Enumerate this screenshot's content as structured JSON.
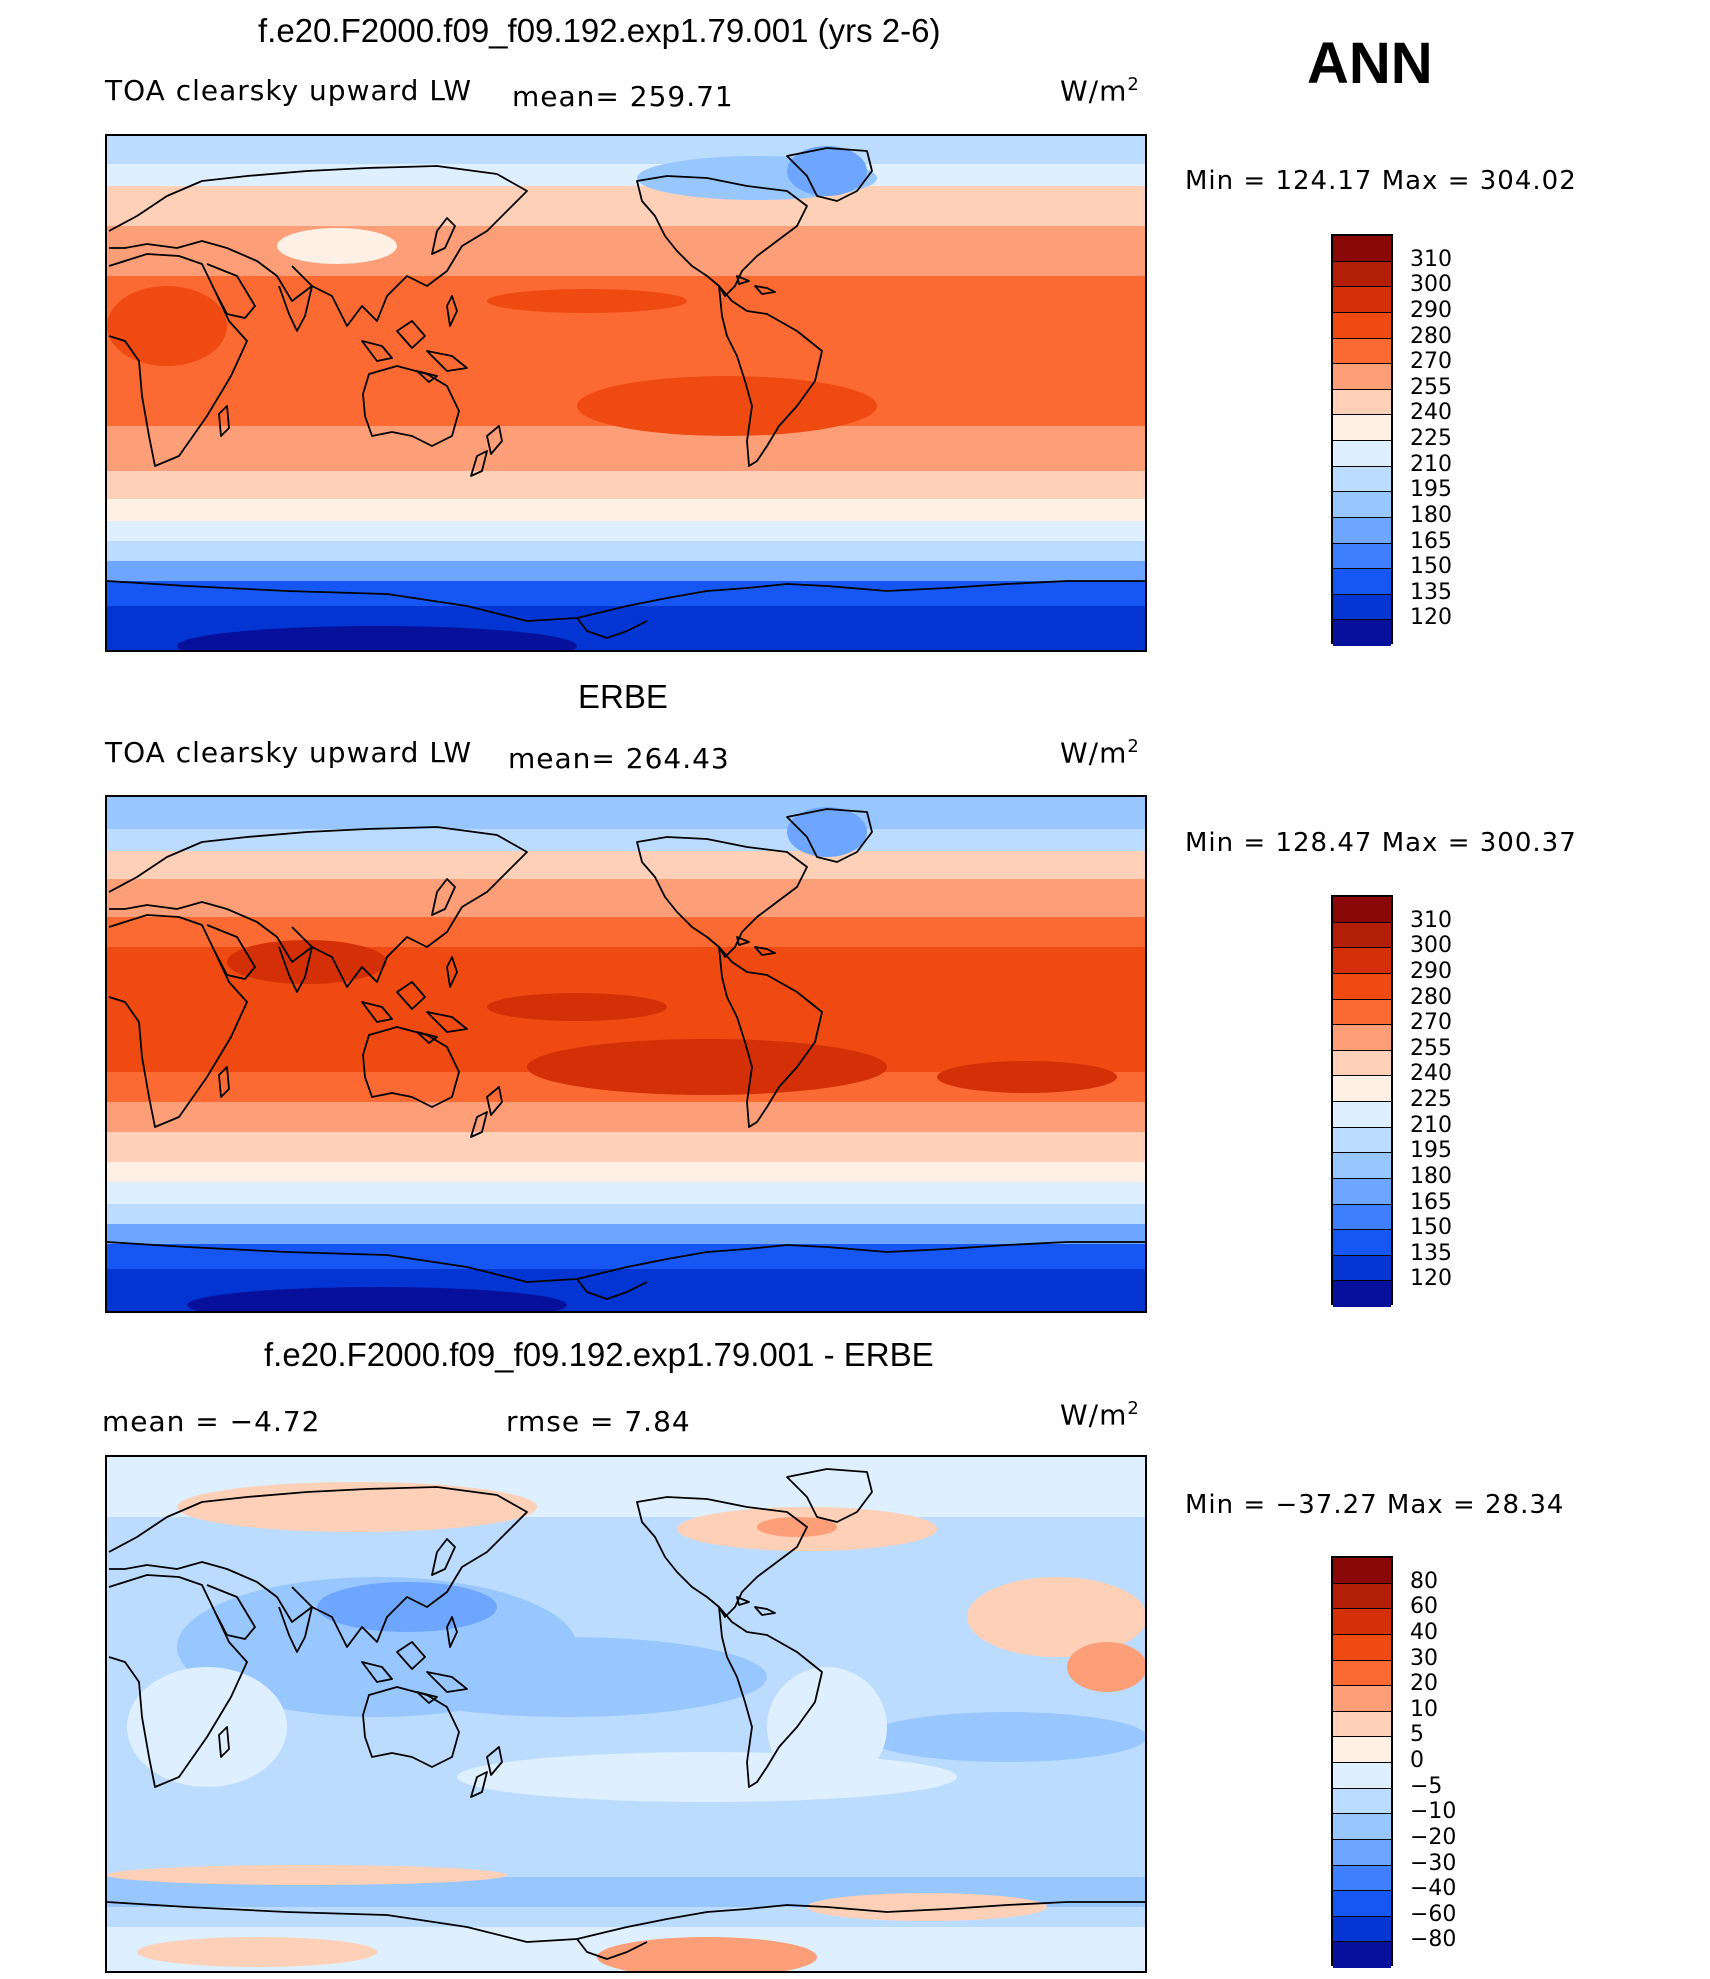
{
  "season": "ANN",
  "panels": [
    {
      "title": "f.e20.F2000.f09_f09.192.exp1.79.001 (yrs 2-6)",
      "left_label": "TOA clearsky upward LW",
      "center_label": "mean= 259.71",
      "units": "W/m",
      "units_sup": "2",
      "min_max": "Min  =  124.17  Max  =  304.02",
      "colorbar_labels": [
        "310",
        "300",
        "290",
        "280",
        "270",
        "255",
        "240",
        "225",
        "210",
        "195",
        "180",
        "165",
        "150",
        "135",
        "120"
      ],
      "colorbar_colors": [
        "#8a0808",
        "#b31e08",
        "#d33008",
        "#ee4a12",
        "#fb6a32",
        "#fc9e78",
        "#fdd0b7",
        "#fef0e4",
        "#deefff",
        "#bcdcff",
        "#98c6ff",
        "#6ea6ff",
        "#3f7ffd",
        "#1657f4",
        "#0335d2",
        "#06109b"
      ]
    },
    {
      "title": "ERBE",
      "left_label": "TOA clearsky upward LW",
      "center_label": "mean= 264.43",
      "units": "W/m",
      "units_sup": "2",
      "min_max": "Min  =  128.47  Max  =  300.37",
      "colorbar_labels": [
        "310",
        "300",
        "290",
        "280",
        "270",
        "255",
        "240",
        "225",
        "210",
        "195",
        "180",
        "165",
        "150",
        "135",
        "120"
      ],
      "colorbar_colors": [
        "#8a0808",
        "#b31e08",
        "#d33008",
        "#ee4a12",
        "#fb6a32",
        "#fc9e78",
        "#fdd0b7",
        "#fef0e4",
        "#deefff",
        "#bcdcff",
        "#98c6ff",
        "#6ea6ff",
        "#3f7ffd",
        "#1657f4",
        "#0335d2",
        "#06109b"
      ]
    },
    {
      "title": "f.e20.F2000.f09_f09.192.exp1.79.001 - ERBE",
      "left_label": "mean  =    −4.72",
      "center_label": "rmse  =     7.84",
      "units": "W/m",
      "units_sup": "2",
      "min_max": "Min  =  −37.27  Max  =    28.34",
      "colorbar_labels": [
        "80",
        "60",
        "40",
        "30",
        "20",
        "10",
        "5",
        "0",
        "−5",
        "−10",
        "−20",
        "−30",
        "−40",
        "−60",
        "−80"
      ],
      "colorbar_colors": [
        "#8a0808",
        "#b31e08",
        "#d33008",
        "#ee4a12",
        "#fb6a32",
        "#fc9e78",
        "#fdd0b7",
        "#fef0e4",
        "#deefff",
        "#bcdcff",
        "#98c6ff",
        "#6ea6ff",
        "#3f7ffd",
        "#1657f4",
        "#0335d2",
        "#06109b"
      ]
    }
  ]
}
